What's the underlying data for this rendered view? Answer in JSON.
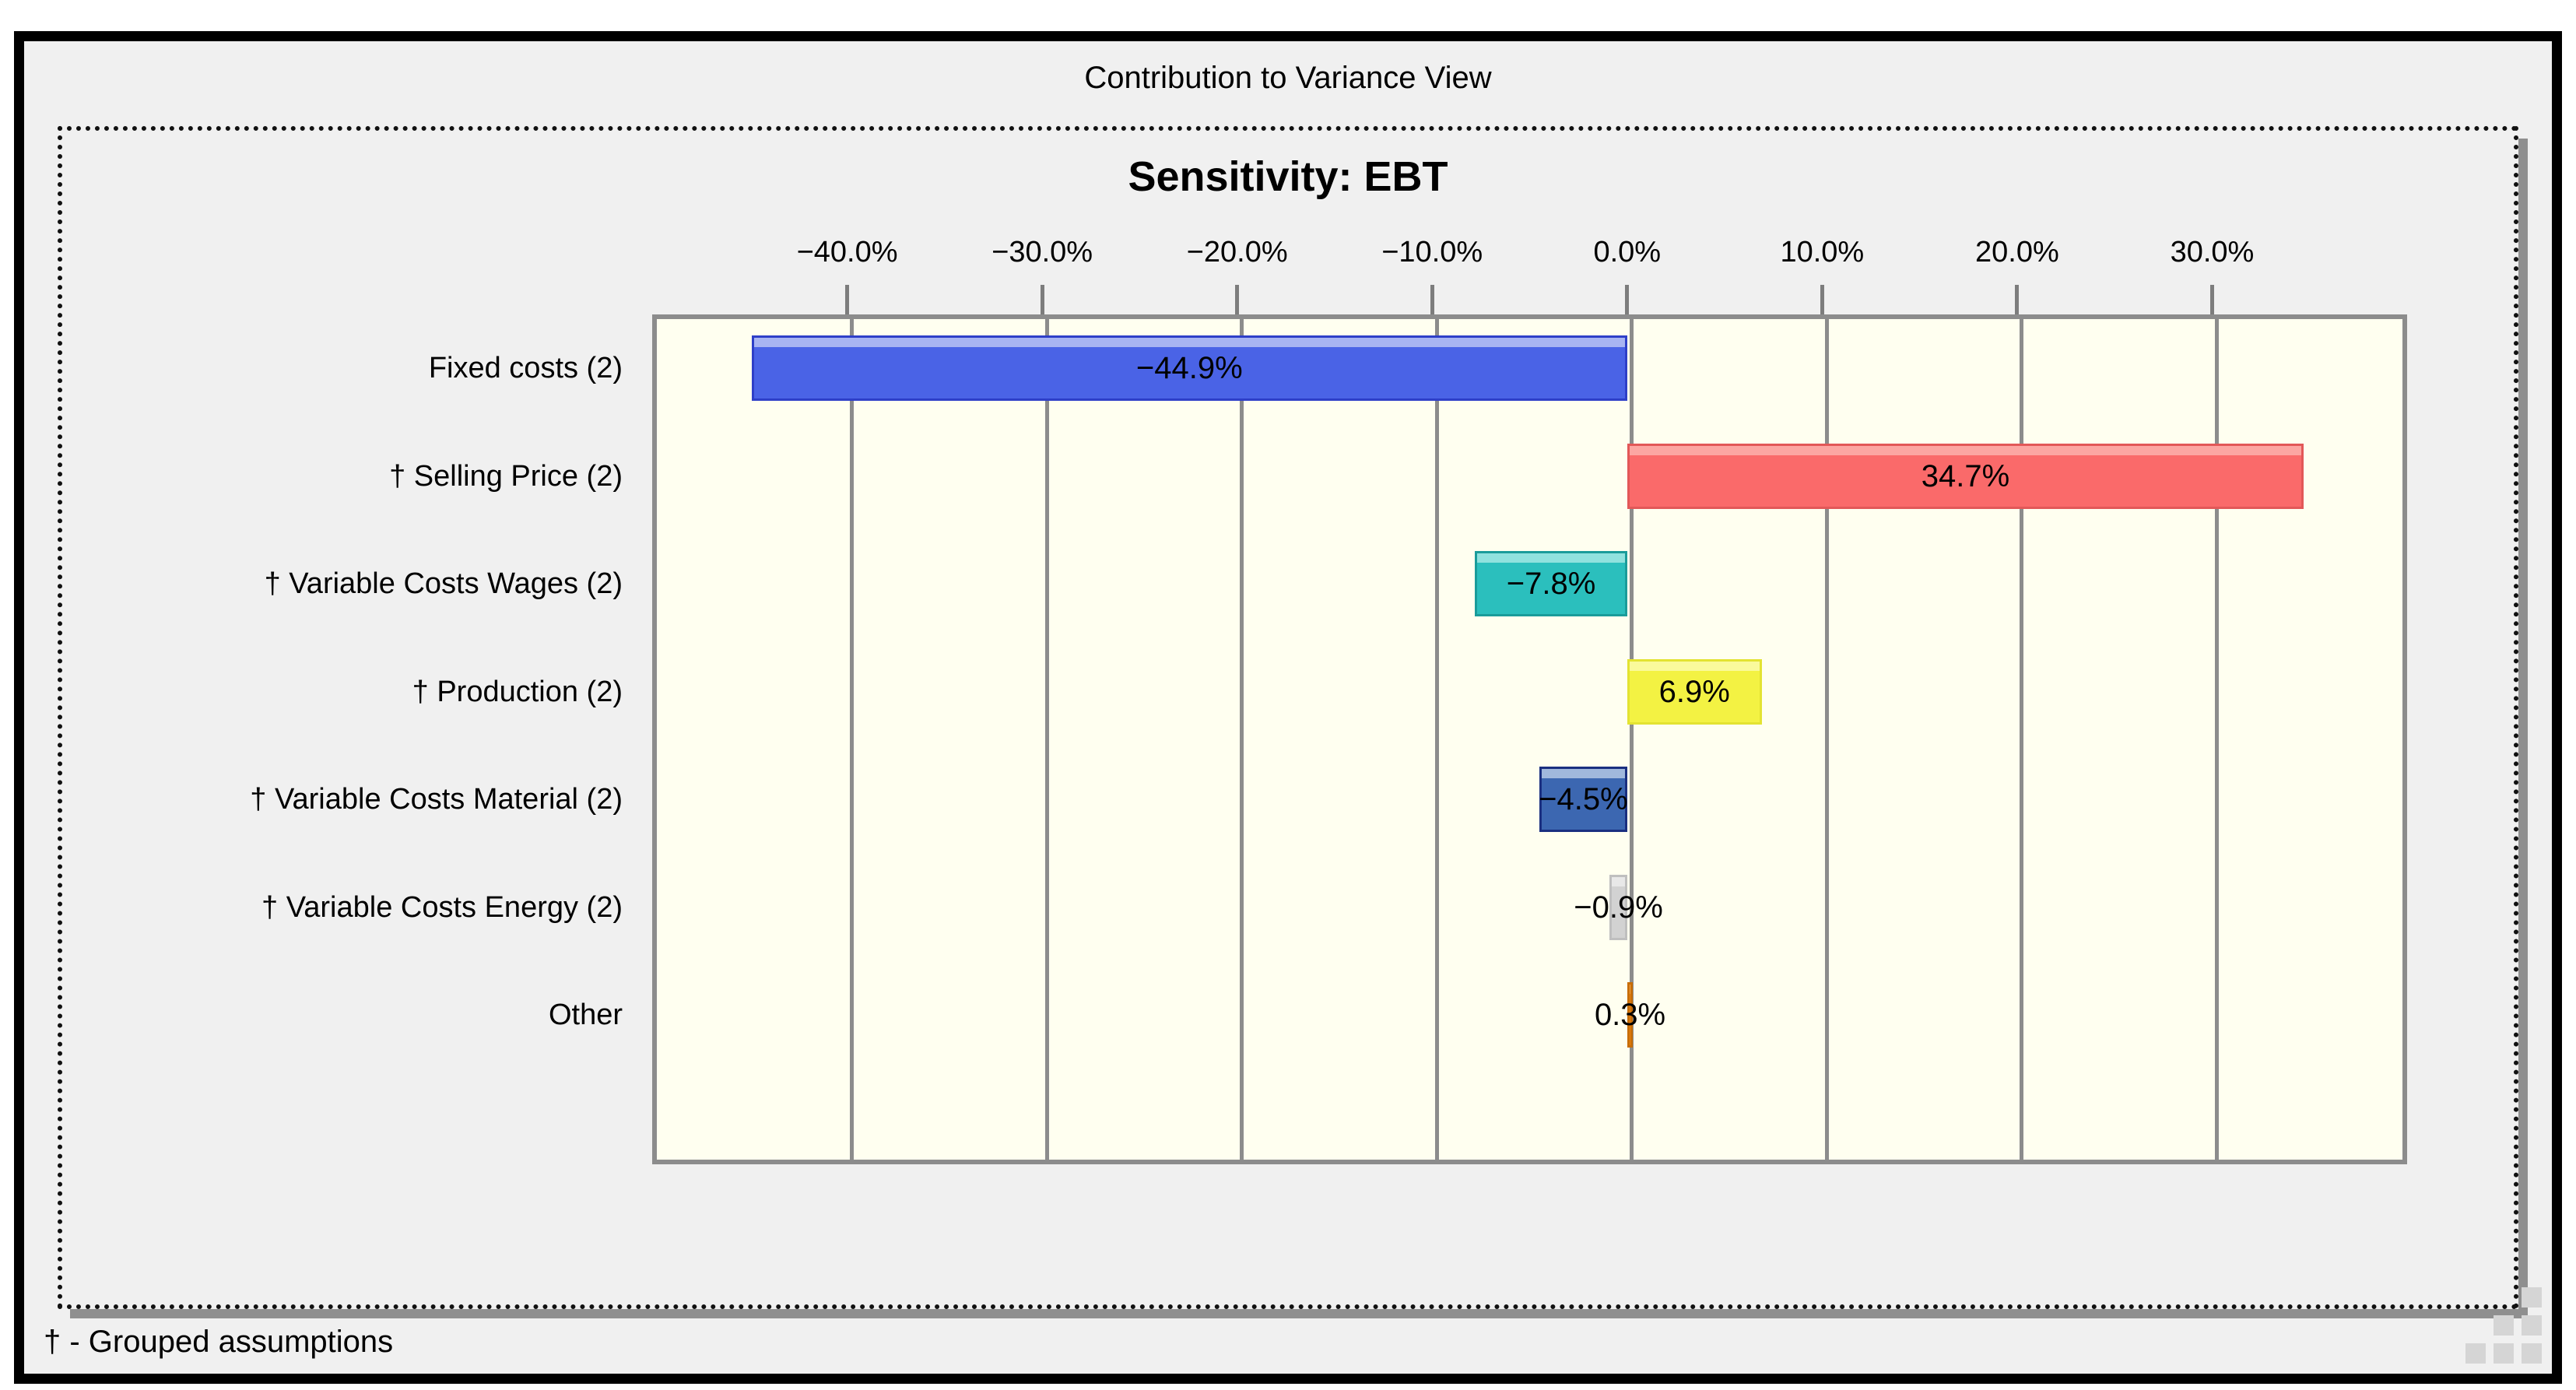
{
  "window": {
    "title": "Contribution to Variance View",
    "footer_note": "† - Grouped assumptions"
  },
  "chart_data": {
    "type": "bar",
    "orientation": "horizontal",
    "title": "Sensitivity: EBT",
    "categories": [
      "Fixed costs (2)",
      "† Selling Price (2)",
      "† Variable Costs Wages (2)",
      "† Production (2)",
      "† Variable Costs Material (2)",
      "† Variable Costs Energy (2)",
      "Other"
    ],
    "values": [
      -44.9,
      34.7,
      -7.8,
      6.9,
      -4.5,
      -0.9,
      0.3
    ],
    "value_labels": [
      "−44.9%",
      "34.7%",
      "−7.8%",
      "6.9%",
      "−4.5%",
      "−0.9%",
      "0.3%"
    ],
    "bar_colors": [
      "#4a63e6",
      "#fa6a6a",
      "#2bbfbd",
      "#f3f243",
      "#3c67b1",
      "#d2d2d2",
      "#ee8410"
    ],
    "bar_border_colors": [
      "#2e3fc8",
      "#e25858",
      "#1a9c9a",
      "#e3e332",
      "#1a2f80",
      "#bfbfbf",
      "#c86e08"
    ],
    "bar_highlight_colors": [
      "#a8b4f2",
      "#fca6a2",
      "#90e2de",
      "#fafa9c",
      "#a0b8dc",
      "#e8e8e8",
      "#f5a84e"
    ],
    "x_ticks": [
      -40,
      -30,
      -20,
      -10,
      0,
      10,
      20,
      30
    ],
    "x_tick_labels": [
      "−40.0%",
      "−30.0%",
      "−20.0%",
      "−10.0%",
      "0.0%",
      "10.0%",
      "20.0%",
      "30.0%"
    ],
    "xlim": [
      -50,
      40
    ],
    "grid": "vertical",
    "legend": "none",
    "plot_bg_color": "#fffff0",
    "grid_color": "#8c8c8c",
    "footnote": "† - Grouped assumptions"
  }
}
